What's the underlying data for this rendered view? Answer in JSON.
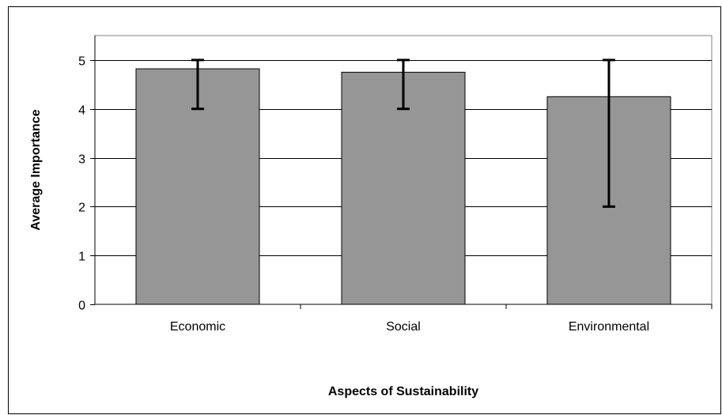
{
  "chart_data": {
    "type": "bar",
    "categories": [
      "Economic",
      "Social",
      "Environmental"
    ],
    "values": [
      4.82,
      4.75,
      4.25
    ],
    "error_bars": [
      {
        "low": 4.0,
        "high": 5.0
      },
      {
        "low": 4.0,
        "high": 5.0
      },
      {
        "low": 2.0,
        "high": 5.0
      }
    ],
    "ylim": [
      0,
      5.5
    ],
    "yticks": [
      "0",
      "1",
      "2",
      "3",
      "4",
      "5"
    ],
    "ytick_values": [
      0,
      1,
      2,
      3,
      4,
      5
    ],
    "xlabel": "Aspects of Sustainability",
    "ylabel": "Average Importance",
    "grid": true,
    "legend": "none",
    "bar_color": "#969696",
    "bar_stroke": "#000000",
    "grid_color": "#000000"
  }
}
